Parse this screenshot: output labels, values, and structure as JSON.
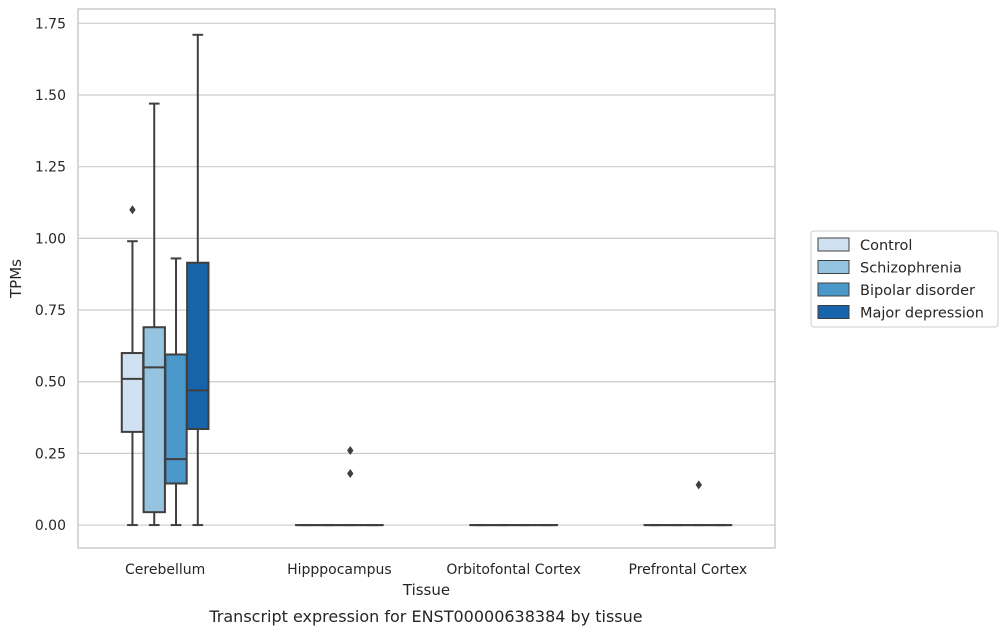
{
  "chart_data": {
    "type": "box",
    "title": "",
    "caption": "Transcript expression for ENST00000638384 by tissue",
    "xlabel": "Tissue",
    "ylabel": "TPMs",
    "ylim": [
      -0.08,
      1.8
    ],
    "yticks": [
      "0.00",
      "0.25",
      "0.50",
      "0.75",
      "1.00",
      "1.25",
      "1.50",
      "1.75"
    ],
    "ytick_values": [
      0,
      0.25,
      0.5,
      0.75,
      1.0,
      1.25,
      1.5,
      1.75
    ],
    "grid": "horizontal",
    "legend_position": "right",
    "categories": [
      "Cerebellum",
      "Hipppocampus",
      "Orbitofontal Cortex",
      "Prefrontal Cortex"
    ],
    "series": [
      {
        "name": "Control",
        "color": "#d0e1f2",
        "boxes": [
          {
            "whislo": 0,
            "q1": 0.325,
            "med": 0.51,
            "q3": 0.6,
            "whishi": 0.99,
            "fliers": [
              1.1
            ]
          },
          {
            "whislo": 0,
            "q1": 0,
            "med": 0,
            "q3": 0,
            "whishi": 0,
            "fliers": []
          },
          {
            "whislo": 0,
            "q1": 0,
            "med": 0,
            "q3": 0,
            "whishi": 0,
            "fliers": []
          },
          {
            "whislo": 0,
            "q1": 0,
            "med": 0,
            "q3": 0,
            "whishi": 0,
            "fliers": []
          }
        ]
      },
      {
        "name": "Schizophrenia",
        "color": "#94c4df",
        "boxes": [
          {
            "whislo": 0,
            "q1": 0.045,
            "med": 0.55,
            "q3": 0.69,
            "whishi": 1.47,
            "fliers": []
          },
          {
            "whislo": 0,
            "q1": 0,
            "med": 0,
            "q3": 0,
            "whishi": 0,
            "fliers": []
          },
          {
            "whislo": 0,
            "q1": 0,
            "med": 0,
            "q3": 0,
            "whishi": 0,
            "fliers": []
          },
          {
            "whislo": 0,
            "q1": 0,
            "med": 0,
            "q3": 0,
            "whishi": 0,
            "fliers": []
          }
        ]
      },
      {
        "name": "Bipolar disorder",
        "color": "#4a98c9",
        "boxes": [
          {
            "whislo": 0,
            "q1": 0.145,
            "med": 0.23,
            "q3": 0.595,
            "whishi": 0.93,
            "fliers": []
          },
          {
            "whislo": 0,
            "q1": 0,
            "med": 0,
            "q3": 0,
            "whishi": 0,
            "fliers": [
              0.26,
              0.18
            ]
          },
          {
            "whislo": 0,
            "q1": 0,
            "med": 0,
            "q3": 0,
            "whishi": 0,
            "fliers": []
          },
          {
            "whislo": 0,
            "q1": 0,
            "med": 0,
            "q3": 0,
            "whishi": 0,
            "fliers": [
              0.14
            ]
          }
        ]
      },
      {
        "name": "Major depression",
        "color": "#1764ab",
        "boxes": [
          {
            "whislo": 0,
            "q1": 0.335,
            "med": 0.47,
            "q3": 0.915,
            "whishi": 1.71,
            "fliers": []
          },
          {
            "whislo": 0,
            "q1": 0,
            "med": 0,
            "q3": 0,
            "whishi": 0,
            "fliers": []
          },
          {
            "whislo": 0,
            "q1": 0,
            "med": 0,
            "q3": 0,
            "whishi": 0,
            "fliers": []
          },
          {
            "whislo": 0,
            "q1": 0,
            "med": 0,
            "q3": 0,
            "whishi": 0,
            "fliers": []
          }
        ]
      }
    ],
    "colors": {
      "edge": "#3f3f3f",
      "grid": "#cccccc",
      "frame": "#cccccc"
    }
  }
}
